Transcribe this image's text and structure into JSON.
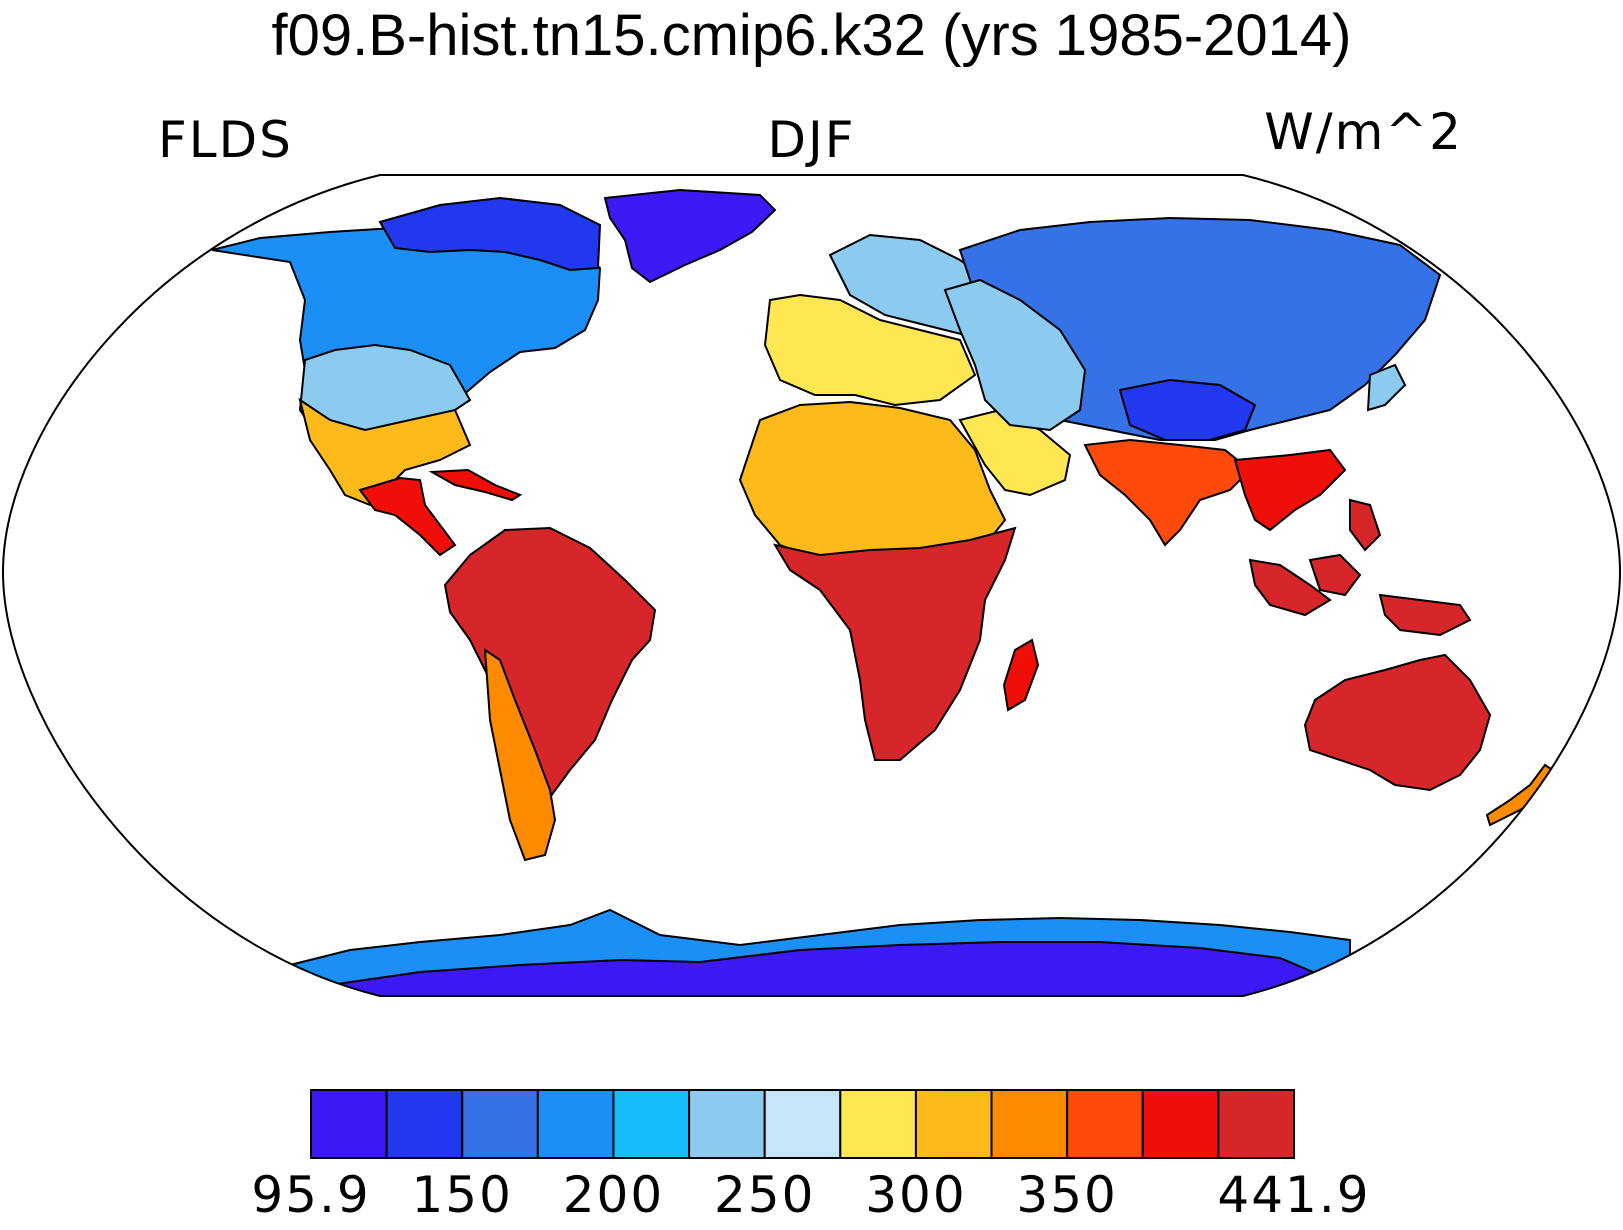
{
  "title": "f09.B-hist.tn15.cmip6.k32 (yrs 1985-2014)",
  "subtitle_left": "FLDS",
  "subtitle_center": "DJF",
  "subtitle_right": "W/m^2",
  "colorbar": {
    "colors": [
      "#3c19f5",
      "#2138ee",
      "#3572e8",
      "#1b8ff5",
      "#14bcf8",
      "#8ccaf0",
      "#c7e5f8",
      "#fee753",
      "#fdba1a",
      "#fe8a00",
      "#ff4a0c",
      "#ef0f08",
      "#d6262a"
    ],
    "ticks": [
      {
        "label": "95.9",
        "boundary": 0
      },
      {
        "label": "150",
        "boundary": 2
      },
      {
        "label": "200",
        "boundary": 4
      },
      {
        "label": "250",
        "boundary": 6
      },
      {
        "label": "300",
        "boundary": 8
      },
      {
        "label": "350",
        "boundary": 10
      },
      {
        "label": "441.9",
        "boundary": 13
      }
    ]
  },
  "regions": [
    {
      "name": "north-america-arctic",
      "level": 1
    },
    {
      "name": "north-america-canada",
      "level": 3
    },
    {
      "name": "north-america-west",
      "level": 5
    },
    {
      "name": "north-america-south",
      "level": 8
    },
    {
      "name": "central-america",
      "level": 11
    },
    {
      "name": "greenland",
      "level": 0
    },
    {
      "name": "south-america",
      "level": 12
    },
    {
      "name": "south-america-andes",
      "level": 9
    },
    {
      "name": "europe-north",
      "level": 5
    },
    {
      "name": "europe-south",
      "level": 7
    },
    {
      "name": "africa-north",
      "level": 8
    },
    {
      "name": "africa-south",
      "level": 12
    },
    {
      "name": "madagascar",
      "level": 11
    },
    {
      "name": "arabia",
      "level": 7
    },
    {
      "name": "siberia",
      "level": 2
    },
    {
      "name": "central-asia",
      "level": 5
    },
    {
      "name": "tibet",
      "level": 1
    },
    {
      "name": "south-asia",
      "level": 10
    },
    {
      "name": "southeast-asia",
      "level": 11
    },
    {
      "name": "maritime-continent",
      "level": 12
    },
    {
      "name": "australia",
      "level": 12
    },
    {
      "name": "new-zealand",
      "level": 9
    },
    {
      "name": "antarctica",
      "level": 0
    },
    {
      "name": "antarctica-coast",
      "level": 3
    }
  ]
}
